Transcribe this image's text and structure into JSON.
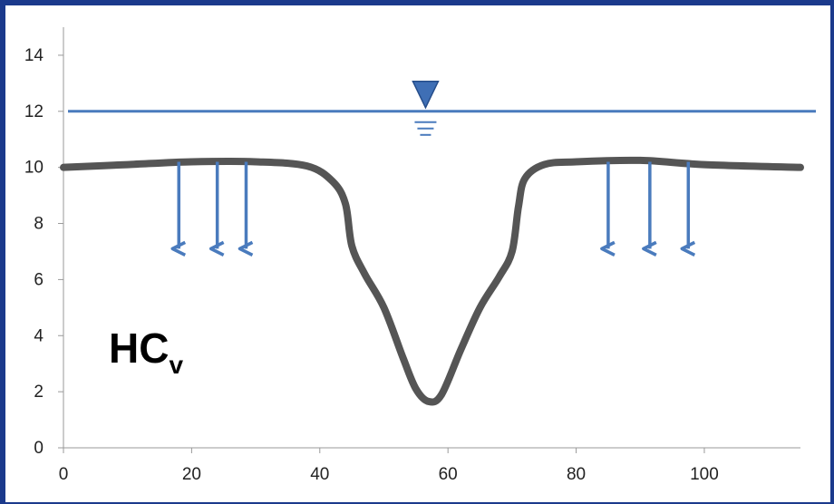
{
  "chart_data": {
    "type": "line",
    "title": "",
    "xlabel": "",
    "ylabel": "",
    "xlim": [
      0,
      115
    ],
    "ylim": [
      0,
      15
    ],
    "x_ticks": [
      "0",
      "20",
      "40",
      "60",
      "80",
      "100"
    ],
    "y_ticks": [
      "0",
      "2",
      "4",
      "6",
      "8",
      "10",
      "12",
      "14"
    ],
    "grid": false,
    "series": [
      {
        "color": "#555555",
        "x": [
          0,
          10,
          20,
          30,
          38,
          42,
          44,
          45,
          47,
          50,
          53,
          55,
          57,
          59,
          62,
          65,
          68,
          70,
          71,
          72,
          75,
          80,
          90,
          100,
          115
        ],
        "y": [
          10,
          10.1,
          10.2,
          10.2,
          10.05,
          9.5,
          8.7,
          7.2,
          6.2,
          5.0,
          3.2,
          2.1,
          1.65,
          1.9,
          3.5,
          5.0,
          6.1,
          7.0,
          8.6,
          9.6,
          10.1,
          10.2,
          10.25,
          10.1,
          10.0
        ]
      }
    ],
    "annotations": {
      "water_level": {
        "y": 12.0,
        "color": "#4a7bbd"
      },
      "water_symbol_x": 56.5,
      "arrows": {
        "color": "#4a7bbd",
        "from_y": 10.2,
        "to_y": 7.1,
        "x": [
          18,
          24,
          28.5,
          85,
          91.5,
          97.5
        ]
      },
      "label_main": "HC",
      "label_sub": "v"
    }
  }
}
